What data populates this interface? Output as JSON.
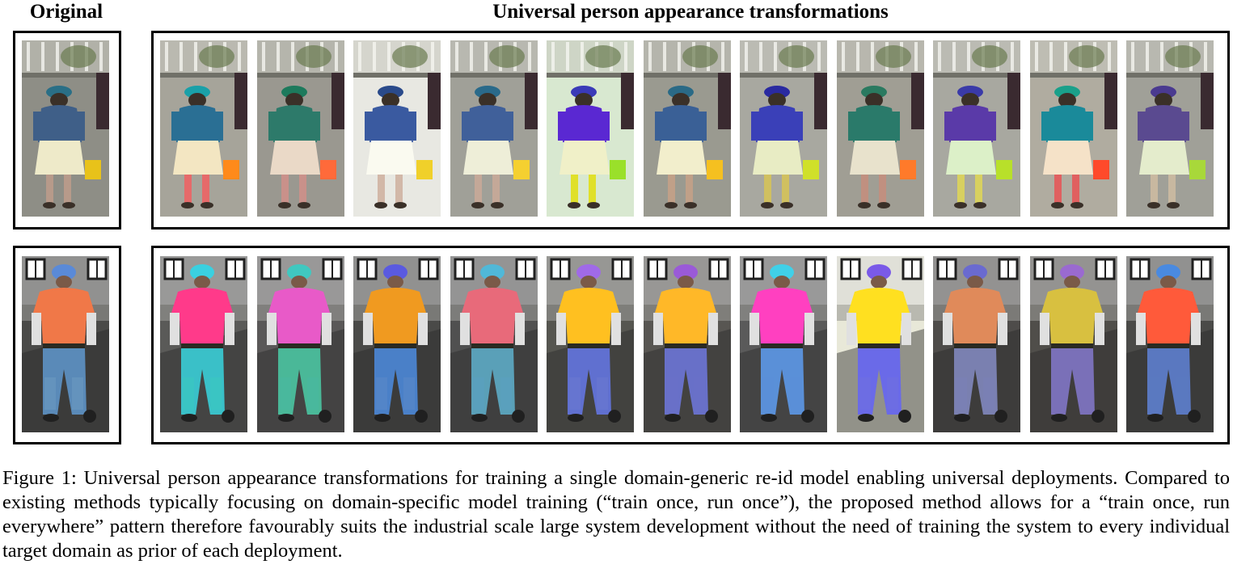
{
  "header": {
    "original_label": "Original",
    "transform_label": "Universal person appearance transformations"
  },
  "caption": {
    "text": "Figure 1: Universal person appearance transformations for training a single domain-generic re-id model enabling universal deployments. Compared to existing methods typically focusing on domain-specific model training (“train once, run once”), the proposed method allows for a “train once, run everywhere” pattern therefore favourably suits the industrial scale large system development without the need of training the system to every individual target domain as prior of each deployment."
  },
  "rows": [
    {
      "person": "woman",
      "original": {
        "top": "#3f5f88",
        "bottom": "#eeeac9",
        "hat": "#2a6f86",
        "bag": "#e8c21a",
        "bg": "#8e8e86",
        "leg": "#b79a8a"
      },
      "variants": [
        {
          "top": "#2a6f94",
          "bottom": "#f3e6c2",
          "hat": "#1aa0a8",
          "bag": "#ff8a1a",
          "bg": "#a6a49a",
          "leg": "#e66a6a"
        },
        {
          "top": "#2d7a6a",
          "bottom": "#ead9c7",
          "hat": "#1d7a5c",
          "bag": "#ff6a3a",
          "bg": "#9a9890",
          "leg": "#c9918a"
        },
        {
          "top": "#3a5aa0",
          "bottom": "#fafaf0",
          "hat": "#2a4a8a",
          "bag": "#f0d02a",
          "bg": "#e8e8e2",
          "leg": "#d2b8a8"
        },
        {
          "top": "#40609a",
          "bottom": "#eeeed8",
          "hat": "#2a6a8a",
          "bag": "#f5d030",
          "bg": "#a0a098",
          "leg": "#c4a898"
        },
        {
          "top": "#5a28d2",
          "bottom": "#f0f0c8",
          "hat": "#3a3ab8",
          "bag": "#9ae02a",
          "bg": "#d8e8d0",
          "leg": "#e0e02a"
        },
        {
          "top": "#3a6096",
          "bottom": "#f2eecc",
          "hat": "#2a6a86",
          "bag": "#f5c020",
          "bg": "#9a9a90",
          "leg": "#c0a088"
        },
        {
          "top": "#3a40b8",
          "bottom": "#e8ecc4",
          "hat": "#2a2aa0",
          "bag": "#d0e02a",
          "bg": "#a8a8a0",
          "leg": "#d0c060"
        },
        {
          "top": "#2a7a6a",
          "bottom": "#e8e2cc",
          "hat": "#2a7a60",
          "bag": "#ff7a2a",
          "bg": "#a09e94",
          "leg": "#c09080"
        },
        {
          "top": "#5a3aa8",
          "bottom": "#dcf0c8",
          "hat": "#3a3aa8",
          "bag": "#b8e02a",
          "bg": "#a8a8a0",
          "leg": "#d8d060"
        },
        {
          "top": "#1a8a9a",
          "bottom": "#f5e2c8",
          "hat": "#1aa08a",
          "bag": "#ff4a2a",
          "bg": "#b0aca0",
          "leg": "#e06060"
        },
        {
          "top": "#5a4a90",
          "bottom": "#e4eccc",
          "hat": "#4a3a90",
          "bag": "#a8d83a",
          "bg": "#a0a098",
          "leg": "#c8b8a0"
        }
      ]
    },
    {
      "person": "man",
      "original": {
        "top": "#f07848",
        "bottom": "#5a8ab8",
        "hat": "#5a8ad8",
        "bag": "#202020",
        "bg": "#4a4a48",
        "leg": "#6a9ac0"
      },
      "variants": [
        {
          "top": "#ff3a8a",
          "bottom": "#3ac0c8",
          "hat": "#3ad0e0",
          "bag": "#202020",
          "bg": "#5a5a58",
          "leg": "#3ac8c0"
        },
        {
          "top": "#e85ac8",
          "bottom": "#4ab898",
          "hat": "#40c8c0",
          "bag": "#202020",
          "bg": "#5a5858",
          "leg": "#4ab8a0"
        },
        {
          "top": "#f09a20",
          "bottom": "#4a80c8",
          "hat": "#5a5ae0",
          "bag": "#202020",
          "bg": "#4a4a48",
          "leg": "#5a88c8"
        },
        {
          "top": "#e86a7a",
          "bottom": "#5aa0b8",
          "hat": "#50b8d8",
          "bag": "#202020",
          "bg": "#505050",
          "leg": "#5aa0c0"
        },
        {
          "top": "#ffc020",
          "bottom": "#6070d0",
          "hat": "#a06ae8",
          "bag": "#202020",
          "bg": "#565650",
          "leg": "#6a78d0"
        },
        {
          "top": "#ffb828",
          "bottom": "#6870c8",
          "hat": "#9a5ad8",
          "bag": "#202020",
          "bg": "#585652",
          "leg": "#6a70c8"
        },
        {
          "top": "#ff40c0",
          "bottom": "#5a90d8",
          "hat": "#40d0e8",
          "bag": "#202020",
          "bg": "#5a5a5a",
          "leg": "#5a90d8"
        },
        {
          "top": "#ffe020",
          "bottom": "#6a6ae8",
          "hat": "#7a5ae8",
          "bag": "#202020",
          "bg": "#e8e8d8",
          "leg": "#7070e0"
        },
        {
          "top": "#e08a5a",
          "bottom": "#7a80b0",
          "hat": "#6a6ad0",
          "bag": "#202020",
          "bg": "#4e4c4a",
          "leg": "#7a80b8"
        },
        {
          "top": "#d8c040",
          "bottom": "#7a70b8",
          "hat": "#9a6ad0",
          "bag": "#202020",
          "bg": "#504e4a",
          "leg": "#7a70b8"
        },
        {
          "top": "#ff5a3a",
          "bottom": "#5a78c0",
          "hat": "#4a8ae0",
          "bag": "#202020",
          "bg": "#4a4a48",
          "leg": "#5a7ac0"
        }
      ]
    }
  ]
}
